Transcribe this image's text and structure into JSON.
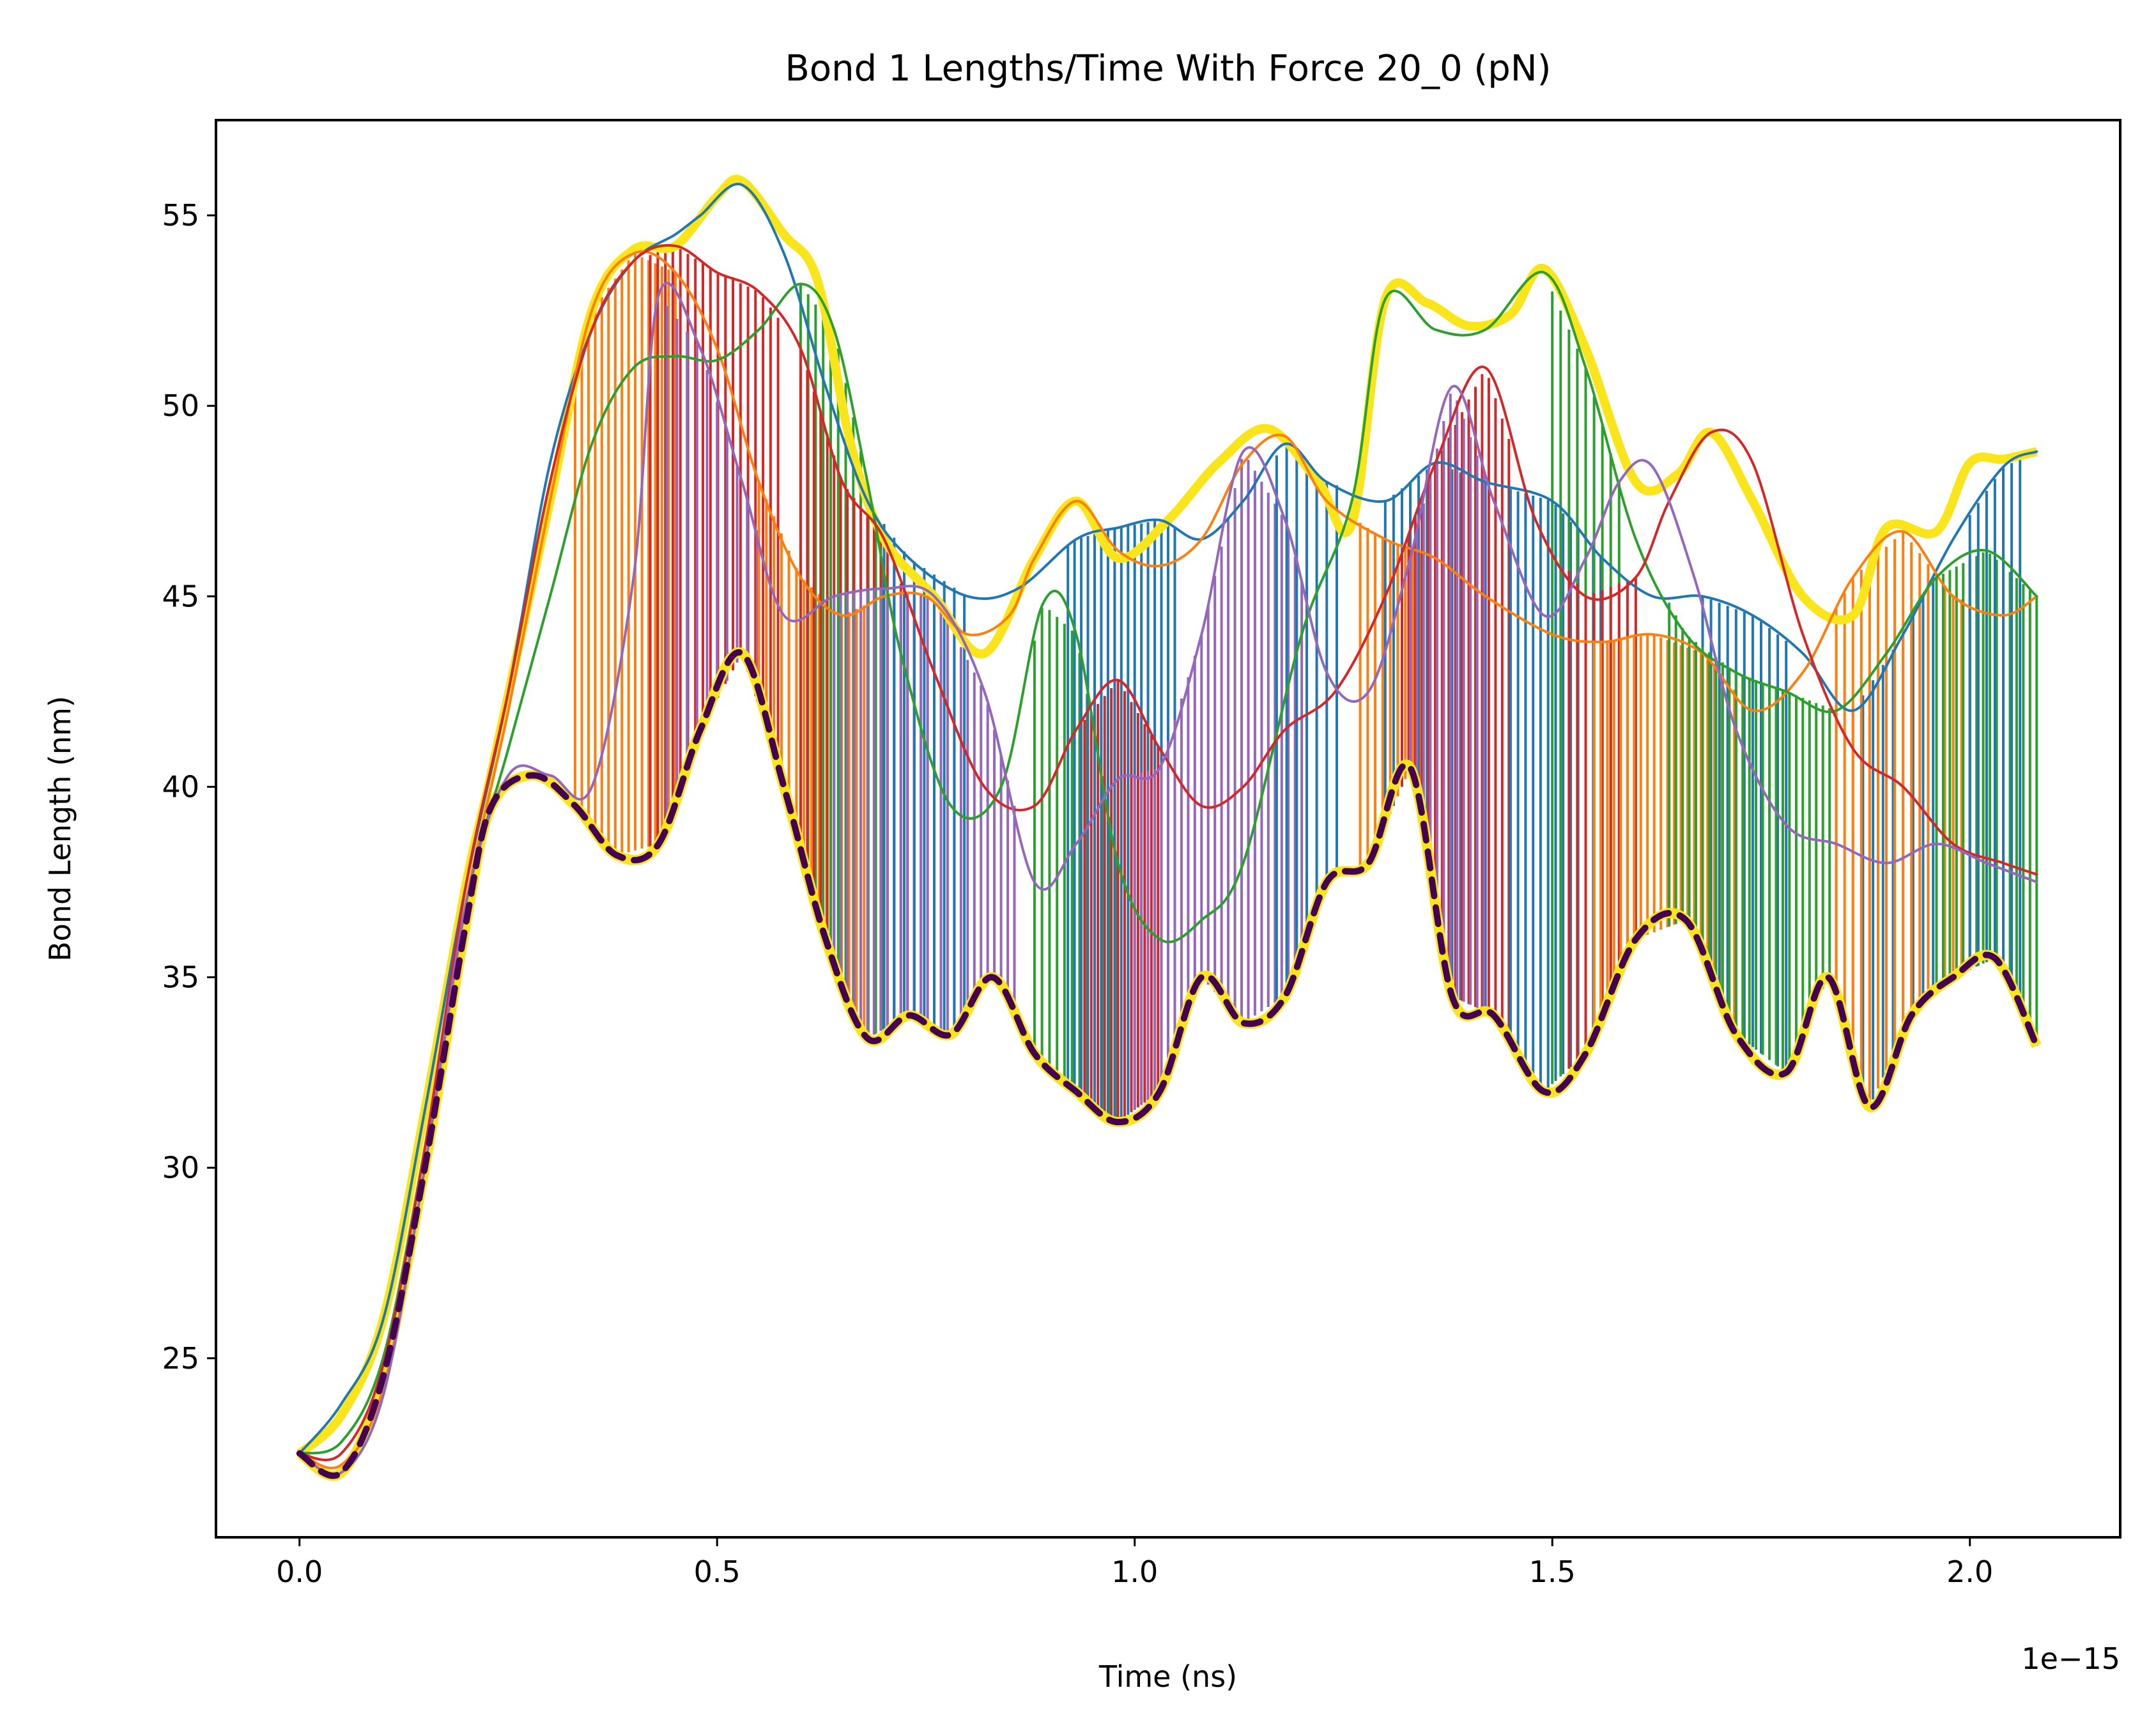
{
  "chart_data": {
    "type": "line",
    "title": "Bond 1 Lengths/Time With Force 20_0 (pN)",
    "xlabel": "Time (ns)",
    "ylabel": "Bond Length (nm)",
    "x_offset_label": "1e−15",
    "xlim": [
      -0.1,
      2.18
    ],
    "ylim": [
      20.3,
      57.5
    ],
    "xticks": [
      "0.0",
      "0.5",
      "1.0",
      "1.5",
      "2.0"
    ],
    "xtick_values": [
      0.0,
      0.5,
      1.0,
      1.5,
      2.0
    ],
    "yticks": [
      "25",
      "30",
      "35",
      "40",
      "45",
      "50",
      "55"
    ],
    "ytick_values": [
      25,
      30,
      35,
      40,
      45,
      50,
      55
    ],
    "grid": false,
    "colors": {
      "envelope": "#f9e51a",
      "lower_band": "#440154",
      "blue": "#1f77b4",
      "orange": "#ff7f0e",
      "green": "#2ca02c",
      "red": "#d62728",
      "purple": "#9467bd"
    },
    "envelope_upper": {
      "x": [
        0.0,
        0.05,
        0.1,
        0.15,
        0.2,
        0.23,
        0.3,
        0.35,
        0.4,
        0.45,
        0.5,
        0.53,
        0.58,
        0.62,
        0.66,
        0.7,
        0.76,
        0.82,
        0.88,
        0.93,
        0.98,
        1.04,
        1.1,
        1.16,
        1.22,
        1.26,
        1.3,
        1.35,
        1.4,
        1.45,
        1.49,
        1.54,
        1.6,
        1.65,
        1.69,
        1.74,
        1.8,
        1.86,
        1.9,
        1.96,
        2.0,
        2.04,
        2.08
      ],
      "y": [
        22.5,
        23.5,
        26.0,
        31.5,
        37.5,
        40.4,
        47.5,
        52.5,
        54.1,
        54.2,
        55.5,
        55.9,
        54.5,
        53.3,
        49.0,
        46.5,
        45.0,
        43.5,
        46.0,
        47.5,
        46.0,
        47.0,
        48.5,
        49.4,
        48.0,
        46.9,
        52.8,
        52.7,
        52.1,
        52.4,
        53.6,
        51.5,
        48.0,
        48.2,
        49.3,
        47.5,
        45.0,
        44.5,
        46.8,
        46.7,
        48.5,
        48.6,
        48.8
      ]
    },
    "envelope_lower": {
      "x": [
        0.0,
        0.05,
        0.1,
        0.15,
        0.2,
        0.23,
        0.28,
        0.33,
        0.38,
        0.43,
        0.48,
        0.53,
        0.58,
        0.63,
        0.68,
        0.73,
        0.78,
        0.83,
        0.88,
        0.93,
        0.98,
        1.03,
        1.08,
        1.13,
        1.18,
        1.23,
        1.28,
        1.33,
        1.38,
        1.43,
        1.49,
        1.54,
        1.6,
        1.66,
        1.72,
        1.78,
        1.83,
        1.88,
        1.93,
        1.98,
        2.03,
        2.08
      ],
      "y": [
        22.5,
        22.0,
        24.5,
        30.0,
        36.5,
        39.5,
        40.3,
        39.5,
        38.2,
        38.5,
        41.5,
        43.5,
        40.0,
        36.0,
        33.4,
        34.0,
        33.5,
        35.0,
        33.0,
        32.0,
        31.2,
        32.0,
        35.0,
        33.8,
        34.5,
        37.5,
        38.0,
        40.5,
        34.5,
        34.0,
        32.0,
        33.0,
        36.0,
        36.5,
        33.5,
        32.5,
        35.0,
        31.6,
        34.0,
        35.0,
        35.5,
        33.2
      ]
    },
    "series": [
      {
        "color": "blue",
        "x": [
          0.0,
          0.05,
          0.1,
          0.15,
          0.2,
          0.25,
          0.3,
          0.35,
          0.4,
          0.45,
          0.48,
          0.53,
          0.58,
          0.63,
          0.68,
          0.73,
          0.8,
          0.86,
          0.93,
          0.98,
          1.03,
          1.08,
          1.13,
          1.18,
          1.23,
          1.3,
          1.36,
          1.42,
          1.5,
          1.56,
          1.62,
          1.68,
          1.74,
          1.8,
          1.86,
          1.92,
          1.98,
          2.04,
          2.08
        ],
        "y": [
          22.5,
          23.8,
          26.0,
          31.5,
          37.5,
          42.5,
          48.5,
          52.0,
          53.8,
          54.5,
          55.0,
          55.8,
          54.0,
          50.5,
          47.5,
          46.0,
          45.0,
          45.2,
          46.5,
          46.8,
          47.0,
          46.5,
          47.5,
          49.0,
          48.0,
          47.5,
          48.5,
          48.0,
          47.5,
          46.0,
          45.0,
          45.0,
          44.5,
          43.5,
          42.0,
          44.0,
          46.5,
          48.4,
          48.8
        ]
      },
      {
        "color": "orange",
        "x": [
          0.0,
          0.05,
          0.1,
          0.15,
          0.2,
          0.25,
          0.3,
          0.35,
          0.4,
          0.45,
          0.5,
          0.55,
          0.6,
          0.65,
          0.7,
          0.75,
          0.8,
          0.85,
          0.88,
          0.93,
          0.98,
          1.03,
          1.08,
          1.13,
          1.18,
          1.23,
          1.3,
          1.36,
          1.42,
          1.5,
          1.56,
          1.62,
          1.68,
          1.74,
          1.8,
          1.86,
          1.92,
          1.98,
          2.04,
          2.08
        ],
        "y": [
          22.5,
          22.2,
          24.2,
          30.0,
          37.0,
          42.0,
          47.5,
          52.5,
          54.0,
          53.5,
          51.5,
          48.0,
          45.5,
          44.5,
          45.0,
          45.0,
          44.0,
          44.5,
          46.0,
          47.5,
          46.2,
          45.8,
          46.5,
          48.5,
          49.2,
          47.5,
          46.5,
          46.0,
          45.0,
          44.0,
          43.8,
          44.0,
          43.5,
          42.0,
          43.0,
          45.5,
          46.7,
          45.0,
          44.5,
          45.0
        ]
      },
      {
        "color": "green",
        "x": [
          0.0,
          0.05,
          0.1,
          0.15,
          0.2,
          0.25,
          0.3,
          0.35,
          0.4,
          0.45,
          0.5,
          0.55,
          0.6,
          0.64,
          0.68,
          0.72,
          0.78,
          0.84,
          0.89,
          0.93,
          0.98,
          1.03,
          1.08,
          1.13,
          1.2,
          1.26,
          1.3,
          1.36,
          1.42,
          1.49,
          1.54,
          1.6,
          1.66,
          1.72,
          1.78,
          1.84,
          1.9,
          1.96,
          2.02,
          2.08
        ],
        "y": [
          22.5,
          22.8,
          25.0,
          30.5,
          37.0,
          41.0,
          45.0,
          49.0,
          51.0,
          51.3,
          51.2,
          52.0,
          53.2,
          52.0,
          48.0,
          43.5,
          39.5,
          40.0,
          44.8,
          44.0,
          38.0,
          36.0,
          36.5,
          38.0,
          44.0,
          47.5,
          52.8,
          52.0,
          52.0,
          53.5,
          51.0,
          46.5,
          44.0,
          43.0,
          42.5,
          42.0,
          43.5,
          45.5,
          46.2,
          45.0
        ]
      },
      {
        "color": "red",
        "x": [
          0.0,
          0.05,
          0.1,
          0.15,
          0.2,
          0.25,
          0.3,
          0.35,
          0.4,
          0.45,
          0.5,
          0.55,
          0.6,
          0.65,
          0.7,
          0.76,
          0.82,
          0.88,
          0.93,
          0.98,
          1.03,
          1.08,
          1.13,
          1.18,
          1.24,
          1.3,
          1.36,
          1.42,
          1.48,
          1.54,
          1.6,
          1.64,
          1.69,
          1.74,
          1.8,
          1.86,
          1.92,
          1.98,
          2.04,
          2.08
        ],
        "y": [
          22.5,
          22.5,
          24.8,
          30.5,
          37.5,
          42.5,
          48.0,
          52.0,
          53.8,
          54.2,
          53.5,
          53.0,
          51.5,
          48.0,
          46.5,
          43.0,
          40.0,
          39.5,
          41.5,
          42.8,
          41.0,
          39.5,
          40.0,
          41.5,
          42.5,
          45.0,
          48.5,
          51.0,
          47.0,
          45.0,
          45.5,
          47.5,
          49.3,
          48.5,
          44.0,
          41.0,
          40.0,
          38.5,
          38.0,
          37.7
        ]
      },
      {
        "color": "purple",
        "x": [
          0.0,
          0.05,
          0.1,
          0.15,
          0.2,
          0.25,
          0.3,
          0.35,
          0.4,
          0.43,
          0.48,
          0.53,
          0.58,
          0.64,
          0.7,
          0.76,
          0.82,
          0.88,
          0.93,
          0.98,
          1.03,
          1.08,
          1.13,
          1.18,
          1.23,
          1.28,
          1.33,
          1.38,
          1.43,
          1.49,
          1.54,
          1.58,
          1.62,
          1.67,
          1.72,
          1.78,
          1.84,
          1.9,
          1.96,
          2.02,
          2.08
        ],
        "y": [
          22.5,
          22.0,
          24.0,
          30.0,
          37.0,
          40.3,
          40.3,
          40.0,
          45.5,
          52.9,
          51.5,
          48.0,
          44.5,
          45.0,
          45.2,
          45.0,
          42.5,
          37.5,
          38.5,
          40.2,
          40.5,
          44.0,
          48.8,
          47.0,
          43.0,
          42.5,
          46.0,
          50.5,
          47.5,
          44.5,
          46.0,
          48.0,
          48.4,
          45.5,
          41.5,
          39.0,
          38.5,
          38.0,
          38.5,
          38.0,
          37.5
        ]
      },
      {
        "color": "lower_band",
        "x": [
          0.0,
          0.05,
          0.1,
          0.15,
          0.2,
          0.23,
          0.28,
          0.33,
          0.38,
          0.43,
          0.48,
          0.53,
          0.58,
          0.63,
          0.68,
          0.73,
          0.78,
          0.83,
          0.88,
          0.93,
          0.98,
          1.03,
          1.08,
          1.13,
          1.18,
          1.23,
          1.28,
          1.33,
          1.38,
          1.43,
          1.49,
          1.54,
          1.6,
          1.66,
          1.72,
          1.78,
          1.83,
          1.88,
          1.93,
          1.98,
          2.03,
          2.08
        ],
        "y": [
          22.5,
          22.0,
          24.5,
          30.0,
          36.5,
          39.5,
          40.3,
          39.5,
          38.2,
          38.5,
          41.5,
          43.5,
          40.0,
          36.0,
          33.4,
          34.0,
          33.5,
          35.0,
          33.0,
          32.0,
          31.2,
          32.0,
          35.0,
          33.8,
          34.5,
          37.5,
          38.0,
          40.5,
          34.5,
          34.0,
          32.0,
          33.0,
          36.0,
          36.5,
          33.5,
          32.5,
          35.0,
          31.6,
          34.0,
          35.0,
          35.5,
          33.2
        ]
      }
    ],
    "vertical_fills": [
      {
        "color": "orange",
        "from": 0.33,
        "to": 0.45,
        "step": 0.008
      },
      {
        "color": "red",
        "from": 0.42,
        "to": 0.58,
        "step": 0.009
      },
      {
        "color": "purple",
        "from": 0.44,
        "to": 0.55,
        "step": 0.012
      },
      {
        "color": "orange",
        "from": 0.55,
        "to": 0.68,
        "step": 0.009
      },
      {
        "color": "green",
        "from": 0.6,
        "to": 0.7,
        "step": 0.009
      },
      {
        "color": "red",
        "from": 0.6,
        "to": 0.76,
        "step": 0.008
      },
      {
        "color": "purple",
        "from": 0.64,
        "to": 0.86,
        "step": 0.008
      },
      {
        "color": "blue",
        "from": 0.7,
        "to": 0.8,
        "step": 0.012
      },
      {
        "color": "green",
        "from": 0.88,
        "to": 0.98,
        "step": 0.009
      },
      {
        "color": "blue",
        "from": 0.92,
        "to": 1.05,
        "step": 0.008
      },
      {
        "color": "red",
        "from": 0.94,
        "to": 1.03,
        "step": 0.008
      },
      {
        "color": "purple",
        "from": 1.0,
        "to": 1.2,
        "step": 0.008
      },
      {
        "color": "blue",
        "from": 1.17,
        "to": 1.25,
        "step": 0.012
      },
      {
        "color": "orange",
        "from": 1.27,
        "to": 1.36,
        "step": 0.009
      },
      {
        "color": "blue",
        "from": 1.3,
        "to": 1.42,
        "step": 0.01
      },
      {
        "color": "red",
        "from": 1.32,
        "to": 1.45,
        "step": 0.008
      },
      {
        "color": "purple",
        "from": 1.33,
        "to": 1.42,
        "step": 0.008
      },
      {
        "color": "blue",
        "from": 1.45,
        "to": 1.56,
        "step": 0.009
      },
      {
        "color": "green",
        "from": 1.5,
        "to": 1.58,
        "step": 0.01
      },
      {
        "color": "red",
        "from": 1.52,
        "to": 1.6,
        "step": 0.01
      },
      {
        "color": "orange",
        "from": 1.55,
        "to": 1.72,
        "step": 0.008
      },
      {
        "color": "blue",
        "from": 1.68,
        "to": 1.78,
        "step": 0.01
      },
      {
        "color": "green",
        "from": 1.64,
        "to": 1.84,
        "step": 0.008
      },
      {
        "color": "blue",
        "from": 1.86,
        "to": 1.96,
        "step": 0.012
      },
      {
        "color": "orange",
        "from": 1.84,
        "to": 2.02,
        "step": 0.01
      },
      {
        "color": "green",
        "from": 1.96,
        "to": 2.08,
        "step": 0.008
      },
      {
        "color": "blue",
        "from": 2.0,
        "to": 2.06,
        "step": 0.01
      }
    ]
  }
}
